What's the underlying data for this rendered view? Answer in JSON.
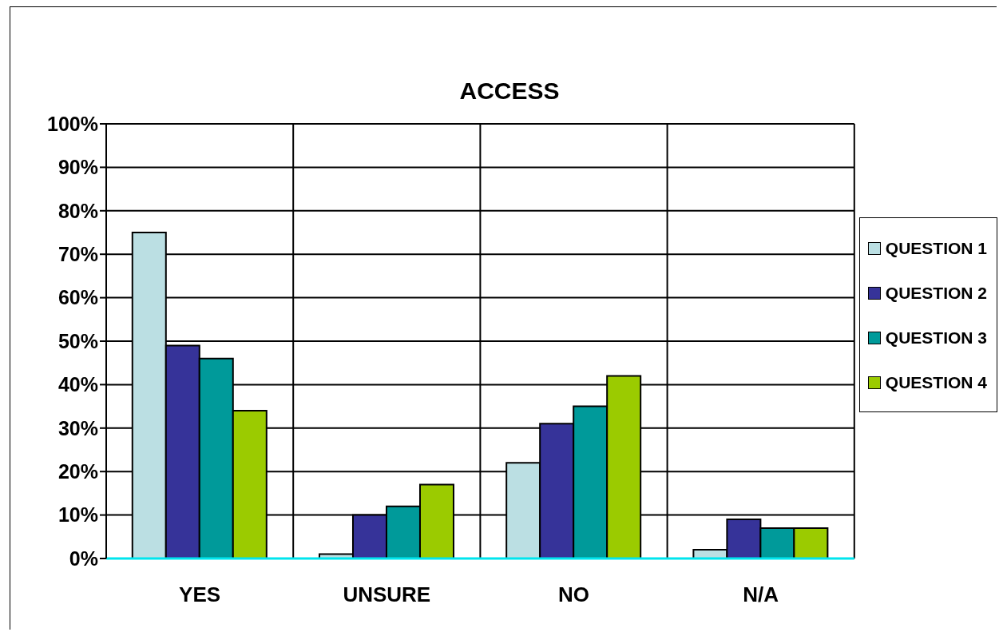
{
  "chart_data": {
    "type": "bar",
    "title": "ACCESS",
    "categories": [
      "YES",
      "UNSURE",
      "NO",
      "N/A"
    ],
    "series": [
      {
        "name": "QUESTION 1",
        "color": "#bbdfe3",
        "values": [
          75,
          1,
          22,
          2
        ]
      },
      {
        "name": "QUESTION 2",
        "color": "#363399",
        "values": [
          49,
          10,
          31,
          9
        ]
      },
      {
        "name": "QUESTION 3",
        "color": "#009a9a",
        "values": [
          46,
          12,
          35,
          7
        ]
      },
      {
        "name": "QUESTION 4",
        "color": "#9bcb00",
        "values": [
          34,
          17,
          42,
          7
        ]
      }
    ],
    "ylim": [
      0,
      100
    ],
    "yticks": [
      {
        "value": 0,
        "label": "0%"
      },
      {
        "value": 10,
        "label": "10%"
      },
      {
        "value": 20,
        "label": "20%"
      },
      {
        "value": 30,
        "label": "30%"
      },
      {
        "value": 40,
        "label": "40%"
      },
      {
        "value": 50,
        "label": "50%"
      },
      {
        "value": 60,
        "label": "60%"
      },
      {
        "value": 70,
        "label": "70%"
      },
      {
        "value": 80,
        "label": "80%"
      },
      {
        "value": 90,
        "label": "90%"
      },
      {
        "value": 100,
        "label": "100%"
      }
    ],
    "grid": true,
    "legend": "right"
  }
}
